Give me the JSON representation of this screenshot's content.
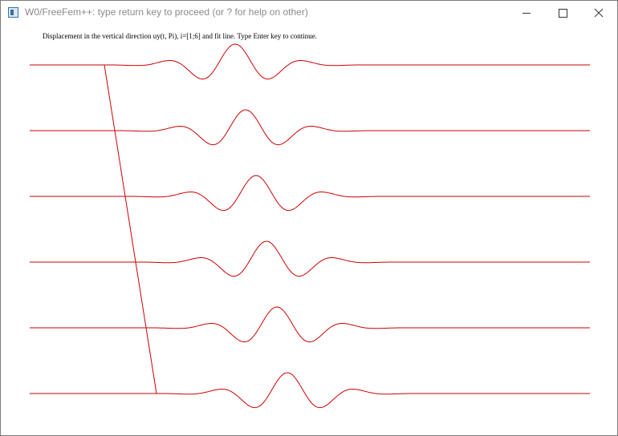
{
  "window": {
    "title": "W0/FreeFem++: type return key to proceed (or ? for help on other)",
    "icon": "app-icon",
    "controls": [
      "minimize-icon",
      "maximize-icon",
      "close-icon"
    ]
  },
  "plot": {
    "caption": "Displacement in the vertical direction uy(t, Pi), i=[1;6] and fit line. Type Enter key to continue.",
    "line_color": "#cc0000"
  },
  "chart_data": {
    "type": "line",
    "series_count": 6,
    "grid": false,
    "legend": "none",
    "fit_line": true
  }
}
